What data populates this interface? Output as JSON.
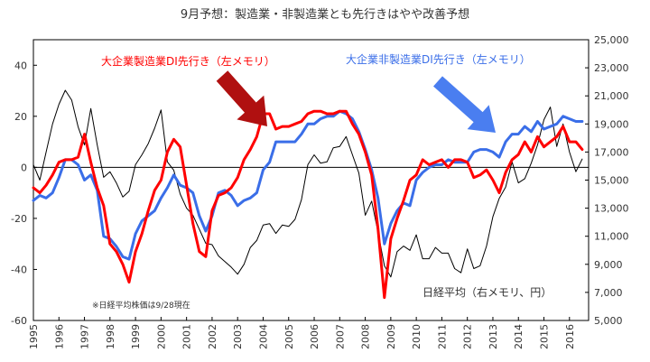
{
  "chart_data": {
    "type": "line",
    "title": "9月予想：製造業・非製造業とも先行きはやや改善予想",
    "x_range": [
      1995,
      2016.75
    ],
    "x_ticks": [
      "1995",
      "1996",
      "1997",
      "1998",
      "1999",
      "2000",
      "2001",
      "2002",
      "2003",
      "2004",
      "2005",
      "2006",
      "2007",
      "2008",
      "2009",
      "2010",
      "2011",
      "2012",
      "2013",
      "2014",
      "2015",
      "2016"
    ],
    "y_left": {
      "range": [
        -60,
        50
      ],
      "ticks": [
        "-60",
        "-40",
        "-20",
        "0",
        "20",
        "40"
      ]
    },
    "y_right": {
      "range": [
        5000,
        25000
      ],
      "ticks": [
        "5,000",
        "7,000",
        "9,000",
        "11,000",
        "13,000",
        "15,000",
        "17,000",
        "19,000",
        "21,000",
        "23,000",
        "25,000"
      ]
    },
    "annotations": {
      "manufacturing": "大企業製造業DI先行き（左メモリ）",
      "nonmanufacturing": "大企業非製造業DI先行き（左メモリ）",
      "nikkei": "日経平均（右メモリ、円）",
      "note": "※日経平均株価は9/28現在"
    },
    "colors": {
      "manufacturing": "#ff0000",
      "nonmanufacturing": "#3a6ee8",
      "nikkei": "#000000",
      "arrow_dark_red": "#b01010",
      "arrow_blue": "#4a7ef0"
    },
    "series": [
      {
        "key": "manufacturing",
        "axis": "left",
        "x": [
          1995.0,
          1995.25,
          1995.5,
          1995.75,
          1996.0,
          1996.25,
          1996.5,
          1996.75,
          1997.0,
          1997.25,
          1997.5,
          1997.75,
          1998.0,
          1998.25,
          1998.5,
          1998.75,
          1999.0,
          1999.25,
          1999.5,
          1999.75,
          2000.0,
          2000.25,
          2000.5,
          2000.75,
          2001.0,
          2001.25,
          2001.5,
          2001.75,
          2002.0,
          2002.25,
          2002.5,
          2002.75,
          2003.0,
          2003.25,
          2003.5,
          2003.75,
          2004.0,
          2004.25,
          2004.5,
          2004.75,
          2005.0,
          2005.25,
          2005.5,
          2005.75,
          2006.0,
          2006.25,
          2006.5,
          2006.75,
          2007.0,
          2007.25,
          2007.5,
          2007.75,
          2008.0,
          2008.25,
          2008.5,
          2008.75,
          2009.0,
          2009.25,
          2009.5,
          2009.75,
          2010.0,
          2010.25,
          2010.5,
          2010.75,
          2011.0,
          2011.25,
          2011.5,
          2011.75,
          2012.0,
          2012.25,
          2012.5,
          2012.75,
          2013.0,
          2013.25,
          2013.5,
          2013.75,
          2014.0,
          2014.25,
          2014.5,
          2014.75,
          2015.0,
          2015.25,
          2015.5,
          2015.75,
          2016.0,
          2016.25,
          2016.5
        ],
        "y": [
          -8,
          -10,
          -7,
          -3,
          2,
          3,
          3,
          4,
          13,
          2,
          -8,
          -15,
          -30,
          -33,
          -38,
          -45,
          -33,
          -26,
          -17,
          -9,
          -5,
          6,
          11,
          8,
          -7,
          -22,
          -33,
          -35,
          -17,
          -11,
          -10,
          -8,
          -4,
          3,
          7,
          12,
          21,
          21,
          15,
          16,
          16,
          17,
          18,
          21,
          22,
          22,
          21,
          21,
          22,
          22,
          17,
          13,
          6,
          -3,
          -24,
          -51,
          -28,
          -20,
          -13,
          -5,
          -3,
          3,
          1,
          2,
          3,
          0,
          3,
          3,
          2,
          -4,
          -3,
          -1,
          -5,
          -10,
          -2,
          3,
          5,
          10,
          6,
          12,
          8,
          10,
          12,
          16,
          10,
          10,
          7
        ]
      },
      {
        "key": "nonmanufacturing",
        "axis": "left",
        "x": [
          1995.0,
          1995.25,
          1995.5,
          1995.75,
          1996.0,
          1996.25,
          1996.5,
          1996.75,
          1997.0,
          1997.25,
          1997.5,
          1997.75,
          1998.0,
          1998.25,
          1998.5,
          1998.75,
          1999.0,
          1999.25,
          1999.5,
          1999.75,
          2000.0,
          2000.25,
          2000.5,
          2000.75,
          2001.0,
          2001.25,
          2001.5,
          2001.75,
          2002.0,
          2002.25,
          2002.5,
          2002.75,
          2003.0,
          2003.25,
          2003.5,
          2003.75,
          2004.0,
          2004.25,
          2004.5,
          2004.75,
          2005.0,
          2005.25,
          2005.5,
          2005.75,
          2006.0,
          2006.25,
          2006.5,
          2006.75,
          2007.0,
          2007.25,
          2007.5,
          2007.75,
          2008.0,
          2008.25,
          2008.5,
          2008.75,
          2009.0,
          2009.25,
          2009.5,
          2009.75,
          2010.0,
          2010.25,
          2010.5,
          2010.75,
          2011.0,
          2011.25,
          2011.5,
          2011.75,
          2012.0,
          2012.25,
          2012.5,
          2012.75,
          2013.0,
          2013.25,
          2013.5,
          2013.75,
          2014.0,
          2014.25,
          2014.5,
          2014.75,
          2015.0,
          2015.25,
          2015.5,
          2015.75,
          2016.0,
          2016.25,
          2016.5
        ],
        "y": [
          -13,
          -11,
          -12,
          -10,
          -4,
          3,
          3,
          1,
          -5,
          -3,
          -9,
          -27,
          -28,
          -31,
          -35,
          -36,
          -26,
          -21,
          -19,
          -17,
          -12,
          -8,
          -3,
          -7,
          -8,
          -10,
          -19,
          -25,
          -19,
          -10,
          -9,
          -11,
          -15,
          -13,
          -12,
          -10,
          -1,
          2,
          10,
          10,
          10,
          10,
          13,
          17,
          17,
          19,
          20,
          20,
          22,
          21,
          19,
          14,
          7,
          -1,
          -12,
          -30,
          -22,
          -17,
          -14,
          -15,
          -5,
          -2,
          0,
          1,
          1,
          3,
          2,
          2,
          2,
          6,
          7,
          7,
          6,
          4,
          10,
          13,
          13,
          16,
          14,
          18,
          15,
          16,
          17,
          20,
          19,
          18,
          18
        ]
      },
      {
        "key": "nikkei",
        "axis": "right",
        "x": [
          1995.0,
          1995.25,
          1995.5,
          1995.75,
          1996.0,
          1996.25,
          1996.5,
          1996.75,
          1997.0,
          1997.25,
          1997.5,
          1997.75,
          1998.0,
          1998.25,
          1998.5,
          1998.75,
          1999.0,
          1999.25,
          1999.5,
          1999.75,
          2000.0,
          2000.25,
          2000.5,
          2000.75,
          2001.0,
          2001.25,
          2001.5,
          2001.75,
          2002.0,
          2002.25,
          2002.5,
          2002.75,
          2003.0,
          2003.25,
          2003.5,
          2003.75,
          2004.0,
          2004.25,
          2004.5,
          2004.75,
          2005.0,
          2005.25,
          2005.5,
          2005.75,
          2006.0,
          2006.25,
          2006.5,
          2006.75,
          2007.0,
          2007.25,
          2007.5,
          2007.75,
          2008.0,
          2008.25,
          2008.5,
          2008.75,
          2009.0,
          2009.25,
          2009.5,
          2009.75,
          2010.0,
          2010.25,
          2010.5,
          2010.75,
          2011.0,
          2011.25,
          2011.5,
          2011.75,
          2012.0,
          2012.25,
          2012.5,
          2012.75,
          2013.0,
          2013.25,
          2013.5,
          2013.75,
          2014.0,
          2014.25,
          2014.5,
          2014.75,
          2015.0,
          2015.25,
          2015.5,
          2015.75,
          2016.0,
          2016.25,
          2016.5
        ],
        "y": [
          16100,
          15000,
          17000,
          19000,
          20400,
          21400,
          20700,
          18800,
          17500,
          20100,
          17500,
          15200,
          15600,
          14800,
          13800,
          14200,
          16100,
          16800,
          17600,
          18700,
          20000,
          16300,
          15700,
          14000,
          13000,
          12500,
          11500,
          10500,
          10400,
          9600,
          9200,
          8800,
          8300,
          9000,
          10200,
          10700,
          11800,
          11900,
          11200,
          11800,
          11700,
          12200,
          13600,
          16100,
          16800,
          16200,
          16300,
          17300,
          17400,
          18100,
          16800,
          15500,
          12500,
          13500,
          11300,
          8900,
          8100,
          9900,
          10300,
          10000,
          11100,
          9400,
          9400,
          10200,
          9800,
          9800,
          8700,
          8400,
          10100,
          8700,
          8900,
          10300,
          12400,
          13700,
          14500,
          16300,
          14800,
          15100,
          16200,
          17500,
          19300,
          20200,
          17400,
          19000,
          17000,
          15600,
          16500
        ]
      }
    ]
  }
}
